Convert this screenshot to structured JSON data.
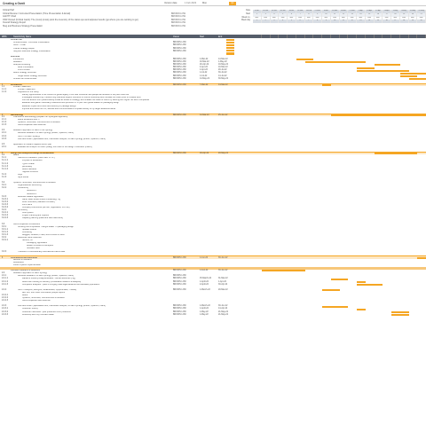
{
  "app": {
    "title": "Creating a Gantt",
    "version_label": "Version date",
    "version_value": "1 Feb 2023",
    "date_label": "Mon",
    "accent_label": "Q1"
  },
  "cover": [
    {
      "k": "Critical Path",
      "v": ""
    },
    {
      "k": "Critical Review / Corrected Presentation (Time Presentation & Email)",
      "v": "BROWN LOW"
    },
    {
      "k": "GANTT Chart",
      "v": "BROWN LOW"
    },
    {
      "k": "OKR Owned (Critical Gantt): The (most) (most) point the inventory of the status quo and adjusted results (go where you are working to go)",
      "v": "BROWN LOW"
    },
    {
      "k": "Overall Strategy Report",
      "v": "BROWN LOW"
    },
    {
      "k": "Slug and Business Strategy Presentation",
      "v": "BROWN LOW"
    }
  ],
  "timeline": {
    "row_labels": [
      "Date",
      "Start",
      "Week no.",
      "Week day"
    ],
    "dates": [
      "9-Jan",
      "16-Jan",
      "23-Jan",
      "30-Jan",
      "6-Feb",
      "13-Feb",
      "20-Feb",
      "27-Feb",
      "6-Mar",
      "13-Mar",
      "20-Mar",
      "27-Mar",
      "3-Apr",
      "10-Apr",
      "17-Apr",
      "24-Apr",
      "1-May",
      "8-May",
      "15-May",
      "22-May"
    ],
    "weeks": [
      "2",
      "3",
      "4",
      "5",
      "6",
      "7",
      "8",
      "9",
      "10",
      "11",
      "12",
      "13",
      "14",
      "15",
      "16",
      "17",
      "18",
      "19",
      "20",
      "21"
    ],
    "days": [
      "Mon",
      "Mon",
      "Mon",
      "Mon",
      "Mon",
      "Mon",
      "Mon",
      "Mon",
      "Mon",
      "Mon",
      "Mon",
      "Mon",
      "Mon",
      "Mon",
      "Mon",
      "Mon",
      "Mon",
      "Mon",
      "Mon",
      "Mon"
    ],
    "extra": [
      "1",
      "2",
      "3",
      "4",
      "5",
      "6",
      "7",
      "8",
      "9",
      "10",
      "11",
      "12",
      "13",
      "14",
      "15",
      "16",
      "17",
      "18",
      "19",
      "20"
    ]
  },
  "columns": {
    "num": "WBS",
    "task": "Task/Activity Name",
    "owner": "Owner",
    "start": "Start",
    "end": "End"
  },
  "rows": [
    {
      "n": "",
      "t": "Critical Path",
      "o": "",
      "s": "",
      "e": "",
      "lvl": 0,
      "type": "sub"
    },
    {
      "n": "",
      "t": "Critical Review / Corrected Presentation",
      "o": "BROWN LOW",
      "s": "",
      "e": "",
      "lvl": 1
    },
    {
      "n": "",
      "t": "GANTT Chart",
      "o": "BROWN LOW",
      "s": "",
      "e": "",
      "lvl": 1
    },
    {
      "n": "",
      "t": "Overall Strategy Report",
      "o": "BROWN LOW",
      "s": "",
      "e": "",
      "lvl": 1
    },
    {
      "n": "",
      "t": "Slug and Business Strategy Presentation",
      "o": "BROWN LOW",
      "s": "",
      "e": "",
      "lvl": 1
    },
    {
      "n": "",
      "t": "",
      "o": "",
      "s": "",
      "e": "",
      "lvl": 0
    },
    {
      "n": "",
      "t": "Workflow",
      "o": "",
      "s": "",
      "e": "",
      "lvl": 0,
      "type": "sub"
    },
    {
      "n": "",
      "t": "Introduction",
      "o": "BROWN LOW",
      "s": "1-Mar-22",
      "e": "14-Mar-22",
      "lvl": 1,
      "bar": [
        5,
        2
      ]
    },
    {
      "n": "",
      "t": "Research",
      "o": "BROWN LOW",
      "s": "10-Mar-22",
      "e": "1-May-22",
      "lvl": 1,
      "bar": [
        6,
        7
      ]
    },
    {
      "n": "",
      "t": "Analysis & Briefing",
      "o": "BROWN LOW",
      "s": "20-Apr-22",
      "e": "10-May-22",
      "lvl": 1,
      "bar": [
        14,
        3
      ]
    },
    {
      "n": "",
      "t": "Build Prioritisation",
      "o": "BROWN LOW",
      "s": "4-Apr-22",
      "e": "10-Mar-22",
      "lvl": 2,
      "bar": [
        12,
        2
      ]
    },
    {
      "n": "",
      "t": "Post Process",
      "o": "BROWN LOW",
      "s": "1-Apr-22",
      "e": "20-Jul-22",
      "lvl": 2,
      "bar": [
        12,
        6
      ]
    },
    {
      "n": "",
      "t": "Brand Strategy Document",
      "o": "BROWN LOW",
      "s": "1-Jul-22",
      "e": "30-Jul-22",
      "lvl": 1,
      "bar": [
        17,
        3
      ]
    },
    {
      "n": "",
      "t": "Single Brand Strategy Document",
      "o": "BROWN LOW",
      "s": "1-Jul-22",
      "e": "14-Jul-22",
      "lvl": 2,
      "bar": [
        17,
        2
      ]
    },
    {
      "n": "",
      "t": "Critical Path Final Review",
      "o": "BROWN LOW",
      "s": "14-May-22",
      "e": "30-May-22",
      "lvl": 1,
      "bar": [
        18,
        2
      ]
    },
    {
      "n": "",
      "t": "",
      "o": "",
      "s": "",
      "e": "",
      "lvl": 0
    },
    {
      "n": "1",
      "t": "Introduction",
      "o": "BROWN LOW",
      "s": "7-Mar-22",
      "e": "14-Mar-22",
      "lvl": 0,
      "type": "sec",
      "bar": [
        8,
        1
      ]
    },
    {
      "n": "1.1",
      "t": "Problem Statement",
      "o": "",
      "s": "",
      "e": "",
      "lvl": 1
    },
    {
      "n": "1.1.1",
      "t": "Problem Statement",
      "o": "",
      "s": "",
      "e": "",
      "lvl": 2
    },
    {
      "n": "1.1.2",
      "t": "Objectives of the Study",
      "o": "",
      "s": "",
      "e": "",
      "lvl": 2
    },
    {
      "n": "",
      "t": "Identify opportunities in the context of global legacy in the new consumer and people as business in the post covid era",
      "o": "",
      "s": "",
      "e": "",
      "lvl": 3
    },
    {
      "n": "",
      "t": "Investigate outsourcing / transforming business support functions to function efficiently and increase the future point of created work",
      "o": "",
      "s": "",
      "e": "",
      "lvl": 3
    },
    {
      "n": "",
      "t": "Find out actions from predominantly locate all losses in strategy, and threaten the value of metric by working with higher net worth companies",
      "o": "",
      "s": "",
      "e": "",
      "lvl": 3
    },
    {
      "n": "",
      "t": "Establish and gather necessary resolutions and portfolios in 'or part' with global leaders in packaging design",
      "o": "",
      "s": "",
      "e": "",
      "lvl": 3
    },
    {
      "n": "",
      "t": "Establish myself as a voice and authority in package design",
      "o": "",
      "s": "",
      "e": "",
      "lvl": 3
    },
    {
      "n": "",
      "t": "Improve and reflect the UX, website and communications to speak directly to my target audience/clients",
      "o": "",
      "s": "",
      "e": "",
      "lvl": 3
    },
    {
      "n": "",
      "t": "",
      "o": "",
      "s": "",
      "e": "",
      "lvl": 0
    },
    {
      "n": "2",
      "t": "Methodology",
      "o": "BROWN LOW",
      "s": "14-Mar-22",
      "e": "25-Jun-22",
      "lvl": 0,
      "type": "sec",
      "bar": [
        9,
        12
      ]
    },
    {
      "n": "2.1",
      "t": "Overview of Methodology (Explain the Synergetic approach)",
      "o": "",
      "s": "",
      "e": "",
      "lvl": 1
    },
    {
      "n": "2.1.1",
      "t": "Brand Resolution and 'If'",
      "o": "",
      "s": "",
      "e": "",
      "lvl": 2
    },
    {
      "n": "2.1.2",
      "t": "Systems, Structures, Functions and Processes",
      "o": "",
      "s": "",
      "e": "",
      "lvl": 2
    },
    {
      "n": "2.1.3",
      "t": "Client Acquisition and Retention",
      "o": "",
      "s": "",
      "e": "",
      "lvl": 2
    },
    {
      "n": "",
      "t": "",
      "o": "",
      "s": "",
      "e": "",
      "lvl": 0
    },
    {
      "n": "2.2",
      "t": "Research approach for each of the Synergy",
      "o": "",
      "s": "",
      "e": "",
      "lvl": 1
    },
    {
      "n": "2.2.1",
      "t": "Identified Research for each synergy (Brand, Systems, Client)",
      "o": "",
      "s": "",
      "e": "",
      "lvl": 2
    },
    {
      "n": "2.2.2",
      "t": "SWOT for each Synergy",
      "o": "",
      "s": "",
      "e": "",
      "lvl": 2
    },
    {
      "n": "2.2.3",
      "t": "Plan and Action (Specialised time, Interviews/ Analyse, for each synergy (Brand, Systems, Client)",
      "o": "",
      "s": "",
      "e": "",
      "lvl": 2
    },
    {
      "n": "",
      "t": "",
      "o": "",
      "s": "",
      "e": "",
      "lvl": 0
    },
    {
      "n": "2.3",
      "t": "Application of research against Action plan",
      "o": "",
      "s": "",
      "e": "",
      "lvl": 1
    },
    {
      "n": "2.3.1",
      "t": "Evaluate and sharpen for each (ready) the route for the design / execution (matrix)",
      "o": "",
      "s": "",
      "e": "",
      "lvl": 2
    },
    {
      "n": "",
      "t": "",
      "o": "",
      "s": "",
      "e": "",
      "lvl": 0
    },
    {
      "n": "3",
      "t": "Design and Analysis/Findings & Deliberation",
      "o": "BROWN LOW",
      "s": "18-Apr-22",
      "e": "20-May-22",
      "lvl": 0,
      "type": "sec",
      "bar": [
        14,
        5
      ]
    },
    {
      "n": "3.1",
      "t": "Brand",
      "o": "",
      "s": "",
      "e": "",
      "lvl": 1
    },
    {
      "n": "3.1.1",
      "t": "Hand-Form Research (Client with S.T.S.)",
      "o": "",
      "s": "",
      "e": "",
      "lvl": 2
    },
    {
      "n": "3.1.1.1",
      "t": "Purpose of Resolution",
      "o": "",
      "s": "",
      "e": "",
      "lvl": 3
    },
    {
      "n": "3.1.1.2",
      "t": "Type of value",
      "o": "",
      "s": "",
      "e": "",
      "lvl": 3
    },
    {
      "n": "3.1.1.3",
      "t": "personality",
      "o": "",
      "s": "",
      "e": "",
      "lvl": 3
    },
    {
      "n": "3.1.1.4",
      "t": "Brand Narrative",
      "o": "",
      "s": "",
      "e": "",
      "lvl": 3
    },
    {
      "n": "",
      "t": "Taglines & Words",
      "o": "",
      "s": "",
      "e": "",
      "lvl": 3
    },
    {
      "n": "3.1.2",
      "t": "Logo",
      "o": "",
      "s": "",
      "e": "",
      "lvl": 2
    },
    {
      "n": "3.1.3",
      "t": "Style Books",
      "o": "",
      "s": "",
      "e": "",
      "lvl": 2
    },
    {
      "n": "",
      "t": "",
      "o": "",
      "s": "",
      "e": "",
      "lvl": 0
    },
    {
      "n": "3.2",
      "t": "Systems, Structures, Functions and Processes",
      "o": "",
      "s": "",
      "e": "",
      "lvl": 1
    },
    {
      "n": "3.2.1",
      "t": "Organizational Structuring",
      "o": "",
      "s": "",
      "e": "",
      "lvl": 2
    },
    {
      "n": "3.2.2",
      "t": "Outsourcing",
      "o": "",
      "s": "",
      "e": "",
      "lvl": 2
    },
    {
      "n": "",
      "t": "Solutions 1",
      "o": "",
      "s": "",
      "e": "",
      "lvl": 4
    },
    {
      "n": "",
      "t": "Solutions 2",
      "o": "",
      "s": "",
      "e": "",
      "lvl": 4
    },
    {
      "n": "3.2.3",
      "t": "Business-related Digitization",
      "o": "",
      "s": "",
      "e": "",
      "lvl": 2
    },
    {
      "n": "3.2.3.1",
      "t": "Gantt, basic email, Brand Onboarding, HQ",
      "o": "",
      "s": "",
      "e": "",
      "lvl": 3
    },
    {
      "n": "3.2.3.2",
      "t": "Work Contracts (Standard Contract)",
      "o": "",
      "s": "",
      "e": "",
      "lvl": 3
    },
    {
      "n": "3.2.3.3",
      "t": "Pitch Deck",
      "o": "",
      "s": "",
      "e": "",
      "lvl": 3
    },
    {
      "n": "3.2.3.4",
      "t": "Company Documents (tax cert, registration, VAT etc)",
      "o": "",
      "s": "",
      "e": "",
      "lvl": 3
    },
    {
      "n": "3.2.4",
      "t": "Accounting",
      "o": "",
      "s": "",
      "e": "",
      "lvl": 2
    },
    {
      "n": "3.2.4.1",
      "t": "Cost system",
      "o": "",
      "s": "",
      "e": "",
      "lvl": 3
    },
    {
      "n": "3.2.4.2",
      "t": "Project Planning and Pipeline",
      "o": "",
      "s": "",
      "e": "",
      "lvl": 3
    },
    {
      "n": "3.2.4.3",
      "t": "Capacity planning (base and field/ lead work)",
      "o": "",
      "s": "",
      "e": "",
      "lvl": 3
    },
    {
      "n": "",
      "t": "",
      "o": "",
      "s": "",
      "e": "",
      "lvl": 0
    },
    {
      "n": "3.3",
      "t": "Client Acquisition & Retention",
      "o": "",
      "s": "",
      "e": "",
      "lvl": 1
    },
    {
      "n": "3.3.1",
      "t": "Growing into a reputable \"thought leader\" in packaging design",
      "o": "",
      "s": "",
      "e": "",
      "lvl": 2
    },
    {
      "n": "3.3.1.1",
      "t": "Speaker Events",
      "o": "",
      "s": "",
      "e": "",
      "lvl": 3
    },
    {
      "n": "3.3.1.2",
      "t": "Consulting",
      "o": "",
      "s": "",
      "e": "",
      "lvl": 3
    },
    {
      "n": "3.3.1.3",
      "t": "Blogged, Linkedin, Press, and Portfolio of work",
      "o": "",
      "s": "",
      "e": "",
      "lvl": 3
    },
    {
      "n": "3.3.2",
      "t": "Additional Work Industries",
      "o": "",
      "s": "",
      "e": "",
      "lvl": 2
    },
    {
      "n": "3.3.2.1",
      "t": "Sectors, i.e.",
      "o": "",
      "s": "",
      "e": "",
      "lvl": 3
    },
    {
      "n": "",
      "t": "Packaging, Application",
      "o": "",
      "s": "",
      "e": "",
      "lvl": 4
    },
    {
      "n": "",
      "t": "Retail Promotion & Disruption",
      "o": "",
      "s": "",
      "e": "",
      "lvl": 4
    },
    {
      "n": "",
      "t": "Software Labs",
      "o": "",
      "s": "",
      "e": "",
      "lvl": 4
    },
    {
      "n": "3.3.3",
      "t": "Transition to internationally international clients base",
      "o": "",
      "s": "",
      "e": "",
      "lvl": 2
    },
    {
      "n": "",
      "t": "",
      "o": "",
      "s": "",
      "e": "",
      "lvl": 0
    },
    {
      "n": "4",
      "t": "Conclusions and Directions",
      "o": "BROWN LOW",
      "s": "1-Jun-22",
      "e": "30-Jun-22",
      "lvl": 0,
      "type": "sec",
      "bar": [
        19,
        1
      ]
    },
    {
      "n": "",
      "t": "Benefits of Research",
      "o": "",
      "s": "",
      "e": "",
      "lvl": 1
    },
    {
      "n": "",
      "t": "Deliberation",
      "o": "",
      "s": "",
      "e": "",
      "lvl": 1
    },
    {
      "n": "",
      "t": "Future Options implementation",
      "o": "",
      "s": "",
      "e": "",
      "lvl": 1
    },
    {
      "n": "",
      "t": "",
      "o": "",
      "s": "",
      "e": "",
      "lvl": 0,
      "type": "band"
    },
    {
      "n": "",
      "t": "Literature Research & Reflection",
      "o": "BROWN LOW",
      "s": "1-Feb-22",
      "e": "30-Jun-22",
      "lvl": 0,
      "bar": [
        1,
        5
      ]
    },
    {
      "n": "2.2",
      "t": "Research approach for each Synergy",
      "o": "",
      "s": "",
      "e": "",
      "lvl": 1
    },
    {
      "n": "2.2.1",
      "t": "Identified Research for each synergy (Brand, Systems, Client)",
      "o": "BROWN LOW",
      "s": "",
      "e": "",
      "lvl": 2
    },
    {
      "n": "2.2.1.1",
      "t": "Market & Industry Analysis/Models - official resources (HQ)",
      "o": "BROWN LOW",
      "s": "15-March-22",
      "e": "31-Mar-22",
      "lvl": 3,
      "bar": [
        9,
        2
      ]
    },
    {
      "n": "2.2.1.2",
      "t": "Brand with building on delivery (consultative research & analysis)",
      "o": "BROWN LOW",
      "s": "1-April-22",
      "e": "1-Apr-22",
      "lvl": 3,
      "bar": [
        12,
        1
      ]
    },
    {
      "n": "2.2.1.3",
      "t": "Competitor analyses - (best of bringing rivals legal audience and standard) operations",
      "o": "BROWN LOW",
      "s": "2-April-22",
      "e": "30-Apr-22",
      "lvl": 3,
      "bar": [
        12,
        3
      ]
    },
    {
      "n": "",
      "t": "",
      "o": "",
      "s": "",
      "e": "",
      "lvl": 0
    },
    {
      "n": "2.2.2",
      "t": "SWOT Analysis (Strengths, Weaknesses, Opportunities, Threats)",
      "o": "BROWN LOW",
      "s": "1-March-22",
      "e": "20-Mar-22",
      "lvl": 2,
      "bar": [
        8,
        2
      ]
    },
    {
      "n": "",
      "t": "with Info, then other informative/ people reports",
      "o": "",
      "s": "",
      "e": "",
      "lvl": 3
    },
    {
      "n": "2.2.2.1",
      "t": "Brand",
      "o": "",
      "s": "",
      "e": "",
      "lvl": 3
    },
    {
      "n": "2.2.2.2",
      "t": "Systems, Structures, Functions and Processes",
      "o": "",
      "s": "",
      "e": "",
      "lvl": 3
    },
    {
      "n": "2.2.2.3",
      "t": "Client Acquisition and Retention",
      "o": "",
      "s": "",
      "e": "",
      "lvl": 3
    },
    {
      "n": "",
      "t": "",
      "o": "",
      "s": "",
      "e": "",
      "lvl": 0
    },
    {
      "n": "2.2.3",
      "t": "Plan and Action (Specialised time, Interviews/ Analyse, for each synergy (Brand, Systems, Client)",
      "o": "BROWN LOW",
      "s": "1-March-22",
      "e": "30-Jun-22",
      "lvl": 2,
      "bar": [
        8,
        3
      ]
    },
    {
      "n": "2.2.3.1",
      "t": "Customer Survey",
      "o": "BROWN LOW",
      "s": "1-April-22",
      "e": "14-Apr-22",
      "lvl": 3,
      "bar": [
        12,
        1
      ]
    },
    {
      "n": "2.2.3.2",
      "t": "Customer interviews - post production & on production",
      "o": "BROWN LOW",
      "s": "1-May-22",
      "e": "21-May-22",
      "lvl": 3,
      "bar": [
        16,
        2
      ]
    },
    {
      "n": "2.2.3.3",
      "t": "Workshop with Key Contract Maker",
      "o": "BROWN LOW",
      "s": "1-May-22",
      "e": "21-May-22",
      "lvl": 3,
      "bar": [
        16,
        2
      ]
    }
  ]
}
